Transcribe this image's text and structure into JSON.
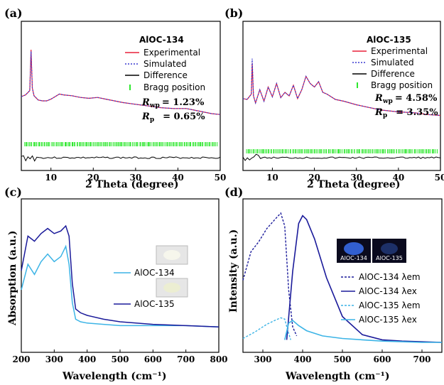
{
  "panels": {
    "a": {
      "tag": "(a)",
      "sample": "AlOC-134",
      "rwp_sym": "R",
      "rwp_sub": "wp",
      "rwp_val": "= 1.23%",
      "rp_sym": "R",
      "rp_sub": "p",
      "rp_val": "= 0.65%"
    },
    "b": {
      "tag": "(b)",
      "sample": "AlOC-135",
      "rwp_sym": "R",
      "rwp_sub": "wp",
      "rwp_val": "= 4.58%",
      "rp_sym": "R",
      "rp_sub": "p",
      "rp_val": "= 3.35%"
    },
    "c": {
      "tag": "(c)",
      "photo_label_1": "AlOC-134",
      "photo_label_2": "AlOC-135"
    },
    "d": {
      "tag": "(d)",
      "photo_label_1": "AlOC-134",
      "photo_label_2": "AlOC-135"
    }
  },
  "legend_xrd": {
    "experimental": "Experimental",
    "simulated": "Simulated",
    "difference": "Difference",
    "bragg": "Bragg position"
  },
  "colors": {
    "experimental": "#e8203a",
    "simulated": "#3a3ad0",
    "difference": "#000000",
    "bragg": "#2ee82e",
    "dark_blue": "#1a1a9a",
    "light_blue": "#3cb4e6"
  },
  "chart_data": [
    {
      "id": "a",
      "type": "line",
      "xlabel": "2 Theta (degree)",
      "ylabel": "",
      "xlim": [
        3,
        50
      ],
      "xticks": [
        10,
        20,
        30,
        40,
        50
      ],
      "series": [
        {
          "name": "Experimental",
          "x": [
            3,
            4,
            5,
            5.3,
            5.6,
            6,
            7,
            8,
            9,
            10,
            11,
            12,
            13,
            15,
            17,
            19,
            21,
            23,
            25,
            27,
            30,
            33,
            36,
            39,
            42,
            45,
            48,
            50
          ],
          "y": [
            0.45,
            0.47,
            0.52,
            1.0,
            0.55,
            0.46,
            0.41,
            0.4,
            0.4,
            0.42,
            0.45,
            0.48,
            0.47,
            0.46,
            0.44,
            0.43,
            0.44,
            0.42,
            0.4,
            0.38,
            0.36,
            0.34,
            0.32,
            0.31,
            0.31,
            0.28,
            0.25,
            0.24
          ]
        },
        {
          "name": "Simulated",
          "x": [
            3,
            4,
            5,
            5.3,
            5.6,
            6,
            7,
            8,
            9,
            10,
            11,
            12,
            13,
            15,
            17,
            19,
            21,
            23,
            25,
            27,
            30,
            33,
            36,
            39,
            42,
            45,
            48,
            50
          ],
          "y": [
            0.45,
            0.47,
            0.52,
            0.98,
            0.55,
            0.46,
            0.41,
            0.4,
            0.4,
            0.42,
            0.45,
            0.48,
            0.47,
            0.46,
            0.44,
            0.43,
            0.44,
            0.42,
            0.4,
            0.38,
            0.36,
            0.34,
            0.32,
            0.31,
            0.31,
            0.28,
            0.25,
            0.24
          ]
        }
      ]
    },
    {
      "id": "b",
      "type": "line",
      "xlabel": "2 Theta (degree)",
      "ylabel": "",
      "xlim": [
        3,
        50
      ],
      "xticks": [
        10,
        20,
        30,
        40,
        50
      ],
      "series": [
        {
          "name": "Experimental",
          "x": [
            3,
            4,
            5,
            5.2,
            5.5,
            6,
            7,
            8,
            9,
            10,
            11,
            12,
            13,
            14,
            15,
            16,
            17,
            18,
            19,
            20,
            21,
            22,
            23,
            25,
            27,
            30,
            33,
            36,
            40,
            44,
            47,
            50
          ],
          "y": [
            0.45,
            0.44,
            0.5,
            0.85,
            0.48,
            0.4,
            0.55,
            0.42,
            0.58,
            0.47,
            0.62,
            0.46,
            0.52,
            0.48,
            0.6,
            0.45,
            0.55,
            0.7,
            0.62,
            0.58,
            0.64,
            0.52,
            0.5,
            0.44,
            0.42,
            0.38,
            0.35,
            0.32,
            0.3,
            0.29,
            0.27,
            0.26
          ]
        },
        {
          "name": "Simulated",
          "x": [
            3,
            4,
            5,
            5.2,
            5.5,
            6,
            7,
            8,
            9,
            10,
            11,
            12,
            13,
            14,
            15,
            16,
            17,
            18,
            19,
            20,
            21,
            22,
            23,
            25,
            27,
            30,
            33,
            36,
            40,
            44,
            47,
            50
          ],
          "y": [
            0.45,
            0.44,
            0.5,
            0.9,
            0.48,
            0.4,
            0.55,
            0.42,
            0.58,
            0.47,
            0.62,
            0.46,
            0.52,
            0.48,
            0.6,
            0.45,
            0.55,
            0.7,
            0.62,
            0.58,
            0.64,
            0.52,
            0.5,
            0.44,
            0.42,
            0.38,
            0.35,
            0.32,
            0.3,
            0.29,
            0.27,
            0.26
          ]
        }
      ]
    },
    {
      "id": "c",
      "type": "line",
      "xlabel": "Wavelength (cm⁻¹)",
      "ylabel": "Absorption (a.u.)",
      "xlim": [
        200,
        800
      ],
      "xticks": [
        200,
        300,
        400,
        500,
        600,
        700,
        800
      ],
      "series": [
        {
          "name": "AlOC-134",
          "x": [
            200,
            220,
            240,
            260,
            280,
            300,
            320,
            335,
            345,
            355,
            365,
            380,
            400,
            450,
            500,
            600,
            700,
            800
          ],
          "y": [
            0.4,
            0.6,
            0.52,
            0.62,
            0.68,
            0.62,
            0.66,
            0.74,
            0.6,
            0.3,
            0.17,
            0.15,
            0.14,
            0.13,
            0.12,
            0.12,
            0.12,
            0.11
          ]
        },
        {
          "name": "AlOC-135",
          "x": [
            200,
            220,
            240,
            260,
            280,
            300,
            320,
            335,
            345,
            355,
            365,
            380,
            400,
            450,
            500,
            600,
            700,
            800
          ],
          "y": [
            0.55,
            0.82,
            0.78,
            0.84,
            0.88,
            0.84,
            0.86,
            0.9,
            0.82,
            0.45,
            0.25,
            0.22,
            0.2,
            0.17,
            0.15,
            0.13,
            0.12,
            0.11
          ]
        }
      ]
    },
    {
      "id": "d",
      "type": "line",
      "xlabel": "Wavelength (cm⁻¹)",
      "ylabel": "Intensity (a.u.)",
      "xlim": [
        250,
        750
      ],
      "xticks": [
        300,
        400,
        500,
        600,
        700
      ],
      "series": [
        {
          "name": "AlOC-134 λem",
          "style": "dashed",
          "x": [
            250,
            270,
            290,
            310,
            330,
            345,
            355,
            365,
            375,
            385
          ],
          "y": [
            0.48,
            0.7,
            0.78,
            0.88,
            0.95,
            1.0,
            0.9,
            0.4,
            0.12,
            0.05
          ]
        },
        {
          "name": "AlOC-134 λex",
          "style": "solid",
          "x": [
            360,
            375,
            390,
            400,
            410,
            430,
            460,
            500,
            550,
            600,
            650,
            750
          ],
          "y": [
            0.02,
            0.55,
            0.92,
            0.98,
            0.95,
            0.8,
            0.5,
            0.2,
            0.06,
            0.02,
            0.01,
            0.0
          ]
        },
        {
          "name": "AlOC-135 λem",
          "style": "dashed",
          "x": [
            250,
            280,
            310,
            330,
            345,
            355,
            362,
            370
          ],
          "y": [
            0.03,
            0.08,
            0.14,
            0.17,
            0.19,
            0.18,
            0.1,
            0.02
          ]
        },
        {
          "name": "AlOC-135 λex",
          "style": "solid",
          "x": [
            355,
            365,
            375,
            390,
            410,
            450,
            500,
            550,
            600,
            700,
            750
          ],
          "y": [
            0.02,
            0.15,
            0.17,
            0.13,
            0.09,
            0.05,
            0.03,
            0.02,
            0.01,
            0.0,
            0.0
          ]
        }
      ]
    }
  ]
}
